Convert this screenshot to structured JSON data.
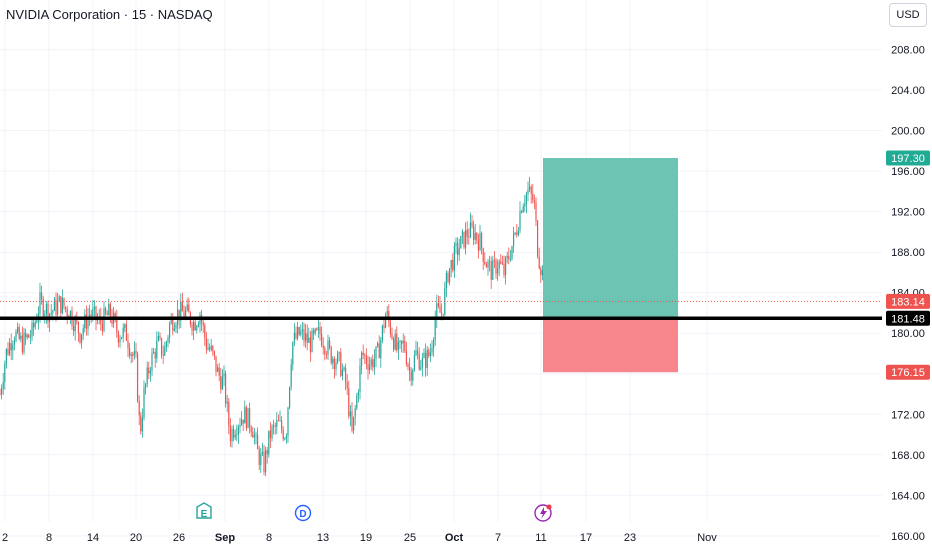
{
  "header": {
    "title": "NVIDIA Corporation · 15 · NASDAQ",
    "currency": "USD"
  },
  "colors": {
    "up": "#26a69a",
    "down": "#ef5350",
    "target_zone": "#6cc4b3",
    "stop_zone": "#f7868c",
    "grid": "#f0f3fa",
    "support_line": "#000000"
  },
  "chart_data": {
    "type": "candlestick",
    "symbol": "NVDA",
    "interval": "15",
    "exchange": "NASDAQ",
    "y_ticks": [
      160,
      164,
      168,
      172,
      176,
      180,
      184,
      188,
      192,
      196,
      200,
      204,
      208
    ],
    "y_tick_labels": [
      "160.00",
      "164.00",
      "168.00",
      "172.00",
      "176.00",
      "180.00",
      "184.00",
      "188.00",
      "192.00",
      "196.00",
      "200.00",
      "204.00",
      "208.00"
    ],
    "ylim": [
      158.6,
      212.9
    ],
    "x_labels": [
      {
        "label": "2",
        "bold": false
      },
      {
        "label": "8",
        "bold": false
      },
      {
        "label": "14",
        "bold": false
      },
      {
        "label": "20",
        "bold": false
      },
      {
        "label": "26",
        "bold": false
      },
      {
        "label": "Sep",
        "bold": true
      },
      {
        "label": "8",
        "bold": false
      },
      {
        "label": "13",
        "bold": false
      },
      {
        "label": "19",
        "bold": false
      },
      {
        "label": "25",
        "bold": false
      },
      {
        "label": "Oct",
        "bold": true
      },
      {
        "label": "7",
        "bold": false
      },
      {
        "label": "11",
        "bold": false
      },
      {
        "label": "17",
        "bold": false
      },
      {
        "label": "23",
        "bold": false
      },
      {
        "label": "Nov",
        "bold": false
      }
    ],
    "price_path": [
      [
        0,
        174
      ],
      [
        6,
        178
      ],
      [
        14,
        180
      ],
      [
        22,
        179
      ],
      [
        32,
        180
      ],
      [
        40,
        183
      ],
      [
        50,
        182
      ],
      [
        60,
        183
      ],
      [
        70,
        182
      ],
      [
        80,
        180
      ],
      [
        90,
        182
      ],
      [
        100,
        181
      ],
      [
        110,
        182
      ],
      [
        118,
        180
      ],
      [
        126,
        180
      ],
      [
        132,
        178
      ],
      [
        136,
        177
      ],
      [
        140,
        170
      ],
      [
        144,
        174
      ],
      [
        150,
        177
      ],
      [
        158,
        179
      ],
      [
        164,
        178
      ],
      [
        170,
        181
      ],
      [
        178,
        182
      ],
      [
        186,
        182
      ],
      [
        194,
        181
      ],
      [
        200,
        182
      ],
      [
        206,
        179
      ],
      [
        212,
        178
      ],
      [
        218,
        176
      ],
      [
        224,
        175
      ],
      [
        230,
        170
      ],
      [
        236,
        171
      ],
      [
        244,
        172
      ],
      [
        252,
        171
      ],
      [
        258,
        168
      ],
      [
        264,
        167
      ],
      [
        270,
        170
      ],
      [
        278,
        171
      ],
      [
        286,
        170
      ],
      [
        292,
        179
      ],
      [
        300,
        180
      ],
      [
        310,
        179
      ],
      [
        320,
        180
      ],
      [
        330,
        178
      ],
      [
        340,
        177
      ],
      [
        346,
        175
      ],
      [
        352,
        170
      ],
      [
        356,
        173
      ],
      [
        362,
        178
      ],
      [
        370,
        177
      ],
      [
        378,
        178
      ],
      [
        386,
        182
      ],
      [
        392,
        180
      ],
      [
        398,
        178
      ],
      [
        404,
        179
      ],
      [
        410,
        176
      ],
      [
        416,
        178
      ],
      [
        422,
        177
      ],
      [
        430,
        178
      ],
      [
        436,
        182
      ],
      [
        442,
        182
      ],
      [
        448,
        186
      ],
      [
        456,
        188
      ],
      [
        462,
        189
      ],
      [
        468,
        190
      ],
      [
        474,
        190
      ],
      [
        480,
        189
      ],
      [
        486,
        187
      ],
      [
        492,
        186
      ],
      [
        498,
        187
      ],
      [
        504,
        186
      ],
      [
        510,
        188
      ],
      [
        516,
        190
      ],
      [
        522,
        193
      ],
      [
        528,
        194
      ],
      [
        534,
        193
      ],
      [
        538,
        188
      ],
      [
        542,
        186
      ],
      [
        545,
        185
      ]
    ],
    "support_line": {
      "value": 181.48,
      "label": "181.48"
    },
    "last_price": {
      "value": 183.14,
      "label": "183.14"
    },
    "position": {
      "entry": 181.48,
      "target": {
        "value": 197.3,
        "label": "197.30"
      },
      "stop": {
        "value": 176.15,
        "label": "176.15"
      }
    },
    "event_markers": [
      {
        "type": "earnings",
        "label": "E"
      },
      {
        "type": "dividend",
        "label": "D"
      },
      {
        "type": "news",
        "label": ""
      }
    ]
  }
}
